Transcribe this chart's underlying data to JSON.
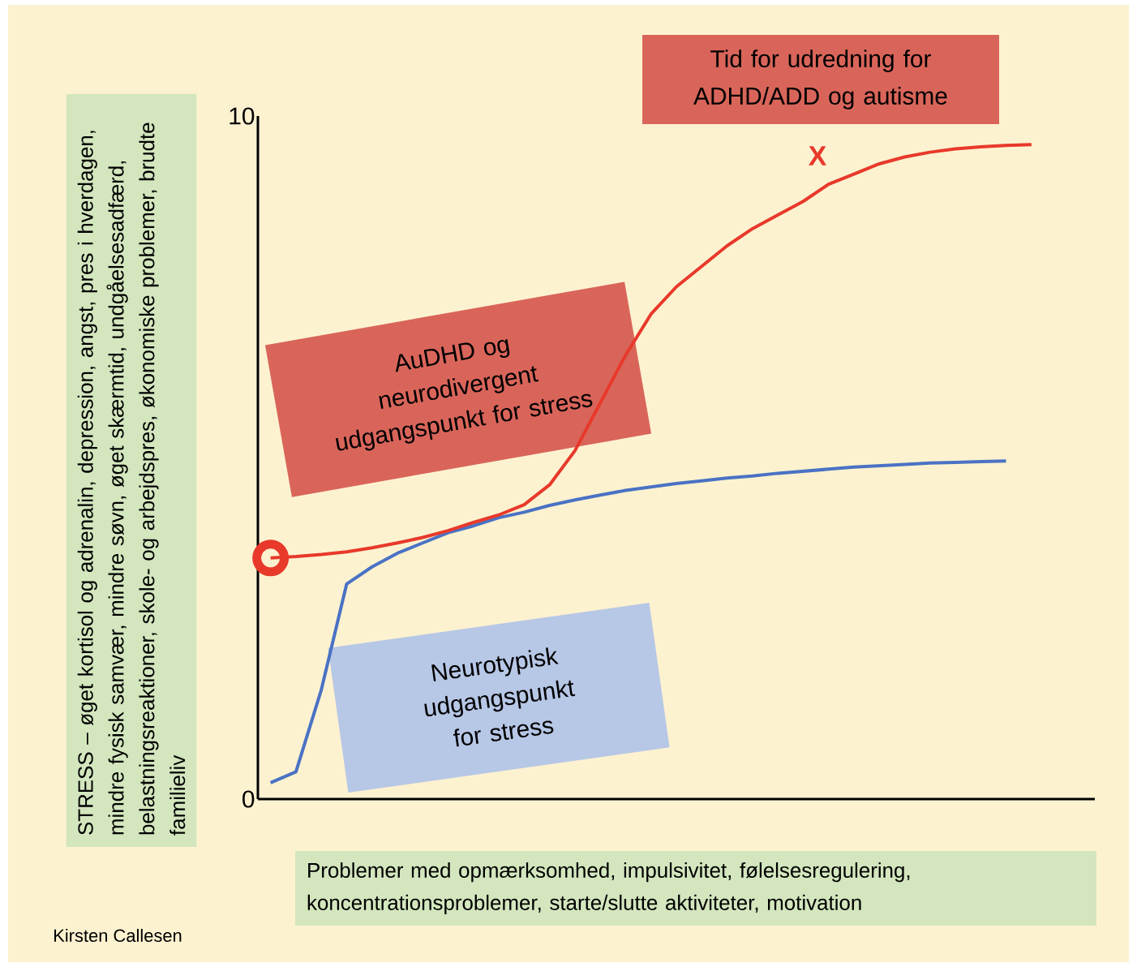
{
  "chart_data": {
    "type": "line",
    "xlabel": "Problemer med opmærksomhed, impulsivitet, følelsesregulering, koncentrationsproblemer, starte/slutte aktiviteter, motivation",
    "ylabel": "STRESS – øget kortisol og adrenalin, depression, angst, pres i hverdagen, mindre fysisk samvær, mindre søvn, øget skærmtid, undgåelsesadfærd, belastningsreaktioner, skole- og arbejdspres, økonomiske problemer, brudte familieliv",
    "categories": [
      null,
      null,
      null,
      null,
      null,
      null,
      null,
      null,
      null,
      null,
      null,
      null,
      null,
      null,
      null,
      null,
      null,
      null,
      null,
      null,
      null,
      null,
      null,
      null,
      null,
      null,
      null,
      null,
      null,
      null,
      null,
      null,
      null
    ],
    "series": [
      {
        "color": "#4a72c4",
        "values": [
          0.24,
          0.4,
          1.6,
          3.15,
          3.4,
          3.6,
          3.75,
          3.9,
          4.0,
          4.12,
          4.2,
          4.3,
          4.38,
          4.45,
          4.52,
          4.57,
          4.62,
          4.66,
          4.7,
          4.73,
          4.77,
          4.8,
          4.83,
          4.86,
          4.88,
          4.9,
          4.92,
          4.93,
          4.94,
          4.95,
          null,
          null,
          null
        ]
      },
      {
        "color": "#e8392b",
        "values": [
          3.53,
          3.55,
          3.58,
          3.62,
          3.68,
          3.75,
          3.83,
          3.93,
          4.05,
          4.16,
          4.31,
          4.6,
          5.1,
          5.8,
          6.5,
          7.1,
          7.5,
          7.8,
          8.1,
          8.35,
          8.55,
          8.75,
          9.0,
          9.15,
          9.3,
          9.4,
          9.47,
          9.52,
          9.55,
          9.57,
          9.58,
          null,
          null
        ]
      },
      {
        "type": "scatter",
        "marker": "circle",
        "color": "#e8392b",
        "values": [
          3.53,
          null,
          null,
          null,
          null,
          null,
          null,
          null,
          null,
          null,
          null,
          null,
          null,
          null,
          null,
          null,
          null,
          null,
          null,
          null,
          null,
          null,
          null,
          null,
          null,
          null,
          null,
          null,
          null,
          null,
          null,
          null,
          null
        ]
      }
    ],
    "ylim": [
      0,
      10
    ],
    "yticks": [
      0,
      10
    ],
    "tick_labels": "y",
    "annotations": [
      "Tid for udredning for ADHD/ADD og autisme",
      "AuDHD og neurodivergent udgangspunkt for stress",
      "Neurotypisk udgangspunkt for stress",
      "X",
      "Kirsten Callesen"
    ]
  }
}
